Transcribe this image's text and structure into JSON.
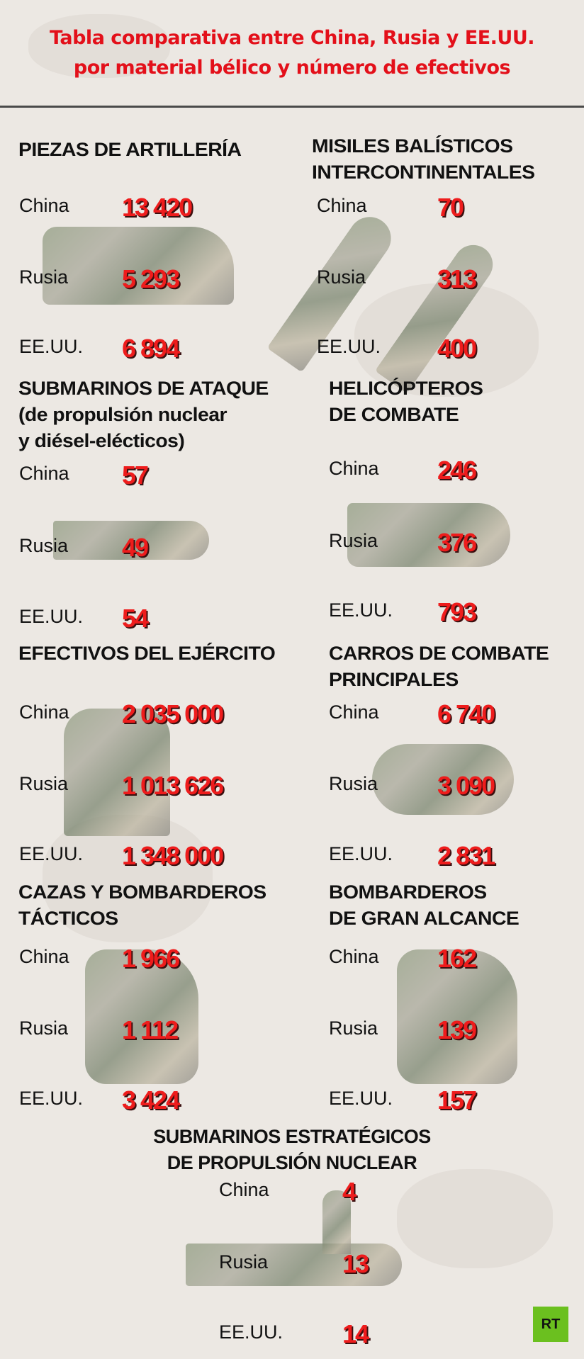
{
  "header": {
    "title_line1": "Tabla comparativa entre China, Rusia y EE.UU.",
    "title_line2": "por material bélico y número de efectivos"
  },
  "colors": {
    "value": "#ee1c1c",
    "title": "#e3101a",
    "logo": "#6bc01f"
  },
  "sections": [
    {
      "heading": "PIEZAS DE ARTILLERÍA",
      "icon": "artillery-truck-icon",
      "rows": [
        {
          "country": "China",
          "value": "13 420"
        },
        {
          "country": "Rusia",
          "value": "5 293"
        },
        {
          "country": "EE.UU.",
          "value": "6 894"
        }
      ]
    },
    {
      "heading": "MISILES BALÍSTICOS\nINTERCONTINENTALES",
      "icon": "missile-icon",
      "rows": [
        {
          "country": "China",
          "value": "70"
        },
        {
          "country": "Rusia",
          "value": "313"
        },
        {
          "country": "EE.UU.",
          "value": "400"
        }
      ]
    },
    {
      "heading": "SUBMARINOS DE ATAQUE\n(de propulsión nuclear\ny diésel-elécticos)",
      "icon": "submarine-icon",
      "rows": [
        {
          "country": "China",
          "value": "57"
        },
        {
          "country": "Rusia",
          "value": "49"
        },
        {
          "country": "EE.UU.",
          "value": "54"
        }
      ]
    },
    {
      "heading": "HELICÓPTEROS\nDE COMBATE",
      "icon": "helicopter-icon",
      "rows": [
        {
          "country": "China",
          "value": "246"
        },
        {
          "country": "Rusia",
          "value": "376"
        },
        {
          "country": "EE.UU.",
          "value": "793"
        }
      ]
    },
    {
      "heading": "EFECTIVOS DEL EJÉRCITO",
      "icon": "soldiers-icon",
      "rows": [
        {
          "country": "China",
          "value": "2 035 000"
        },
        {
          "country": "Rusia",
          "value": "1 013 626"
        },
        {
          "country": "EE.UU.",
          "value": "1 348 000"
        }
      ]
    },
    {
      "heading": "CARROS DE COMBATE\nPRINCIPALES",
      "icon": "tank-icon",
      "rows": [
        {
          "country": "China",
          "value": "6 740"
        },
        {
          "country": "Rusia",
          "value": "3 090"
        },
        {
          "country": "EE.UU.",
          "value": "2 831"
        }
      ]
    },
    {
      "heading": "CAZAS Y BOMBARDEROS\nTÁCTICOS",
      "icon": "fighter-jet-icon",
      "rows": [
        {
          "country": "China",
          "value": "1 966"
        },
        {
          "country": "Rusia",
          "value": "1 112"
        },
        {
          "country": "EE.UU.",
          "value": "3 424"
        }
      ]
    },
    {
      "heading": "BOMBARDEROS\nDE GRAN ALCANCE",
      "icon": "bomber-icon",
      "rows": [
        {
          "country": "China",
          "value": "162"
        },
        {
          "country": "Rusia",
          "value": "139"
        },
        {
          "country": "EE.UU.",
          "value": "157"
        }
      ]
    },
    {
      "heading": "SUBMARINOS ESTRATÉGICOS\nDE PROPULSIÓN NUCLEAR",
      "icon": "strategic-submarine-icon",
      "rows": [
        {
          "country": "China",
          "value": "4"
        },
        {
          "country": "Rusia",
          "value": "13"
        },
        {
          "country": "EE.UU.",
          "value": "14"
        }
      ]
    }
  ],
  "logo": {
    "text": "RT"
  }
}
